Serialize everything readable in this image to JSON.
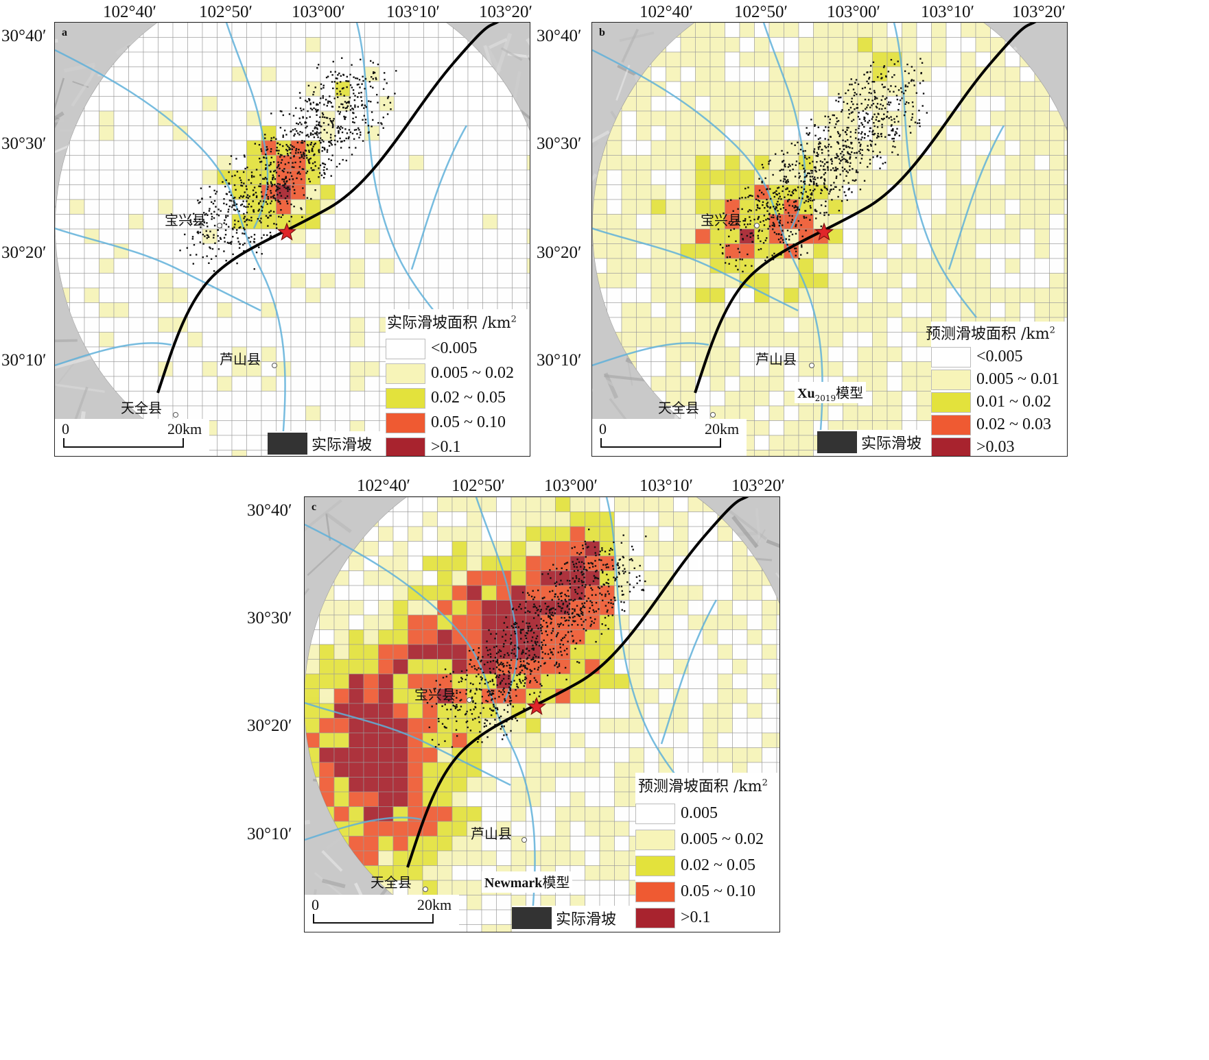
{
  "colors": {
    "class0": "#ffffff",
    "class1": "#f7f4b8",
    "class2": "#e3e23c",
    "class3": "#ef5a32",
    "class4": "#a8232e",
    "fault": "#000000",
    "river": "#5fb0d9",
    "star": "#e0262a",
    "actual_landslide": "#333333"
  },
  "longitude_labels": [
    "102°40′",
    "102°50′",
    "103°00′",
    "103°10′",
    "103°20′"
  ],
  "latitude_labels": [
    "30°40′",
    "30°30′",
    "30°20′",
    "30°10′"
  ],
  "panels": [
    {
      "id": "a",
      "label": "a",
      "legend_title": "实际滑坡面积 /km",
      "legend_title_sup": "2",
      "legend_classes": [
        "<0.005",
        "0.005 ~ 0.02",
        "0.02 ~ 0.05",
        "0.05 ~ 0.10",
        ">0.1"
      ],
      "actual_landslide_label": "实际滑坡",
      "scale_start": "0",
      "scale_end": "20km",
      "model_label": "",
      "model_sub": "",
      "model_suffix": "",
      "places": [
        "宝兴县",
        "芦山县",
        "天全县"
      ],
      "icon_names": [
        "epicenter-star-icon",
        "county-seat-icon"
      ]
    },
    {
      "id": "b",
      "label": "b",
      "legend_title": "预测滑坡面积 /km",
      "legend_title_sup": "2",
      "legend_classes": [
        "<0.005",
        "0.005 ~ 0.01",
        "0.01 ~ 0.02",
        "0.02 ~ 0.03",
        ">0.03"
      ],
      "actual_landslide_label": "实际滑坡",
      "scale_start": "0",
      "scale_end": "20km",
      "model_label": "Xu",
      "model_sub": "2019",
      "model_suffix": "模型",
      "places": [
        "宝兴县",
        "芦山县",
        "天全县"
      ],
      "icon_names": [
        "epicenter-star-icon",
        "county-seat-icon"
      ]
    },
    {
      "id": "c",
      "label": "c",
      "legend_title": "预测滑坡面积 /km",
      "legend_title_sup": "2",
      "legend_classes": [
        "0.005",
        "0.005 ~ 0.02",
        "0.02 ~ 0.05",
        "0.05 ~ 0.10",
        ">0.1"
      ],
      "actual_landslide_label": "实际滑坡",
      "scale_start": "0",
      "scale_end": "20km",
      "model_label": "Newmark",
      "model_sub": "",
      "model_suffix": "模型",
      "places": [
        "宝兴县",
        "芦山县",
        "天全县"
      ],
      "icon_names": [
        "epicenter-star-icon",
        "county-seat-icon"
      ]
    }
  ]
}
